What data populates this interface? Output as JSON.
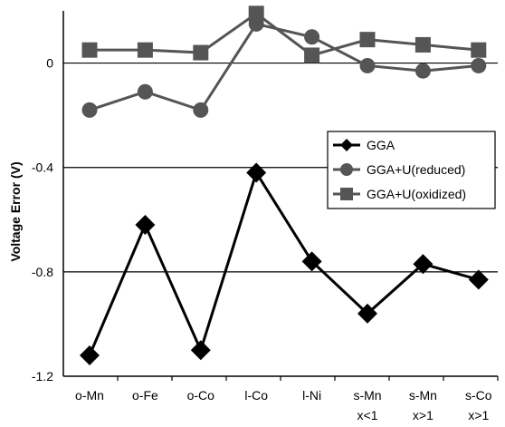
{
  "chart_data": {
    "type": "line",
    "ylabel": "Voltage Error (V)",
    "ylim": [
      -1.2,
      0.2
    ],
    "yticks": [
      {
        "value": 0,
        "label": "0"
      },
      {
        "value": -0.4,
        "label": "-0.4"
      },
      {
        "value": -0.8,
        "label": "-0.8"
      },
      {
        "value": -1.2,
        "label": "-1.2"
      }
    ],
    "categories": [
      {
        "line1": "o-Mn",
        "line2": ""
      },
      {
        "line1": "o-Fe",
        "line2": ""
      },
      {
        "line1": "o-Co",
        "line2": ""
      },
      {
        "line1": "l-Co",
        "line2": ""
      },
      {
        "line1": "l-Ni",
        "line2": ""
      },
      {
        "line1": "s-Mn",
        "line2": "x<1"
      },
      {
        "line1": "s-Mn",
        "line2": "x>1"
      },
      {
        "line1": "s-Co",
        "line2": "x>1"
      }
    ],
    "grid": "horizontal lines at 0, -0.4, -0.8",
    "legend_position": "right",
    "series": [
      {
        "name": "GGA",
        "marker": "diamond",
        "values": [
          -1.12,
          -0.62,
          -1.1,
          -0.42,
          -0.76,
          -0.96,
          -0.77,
          -0.83
        ]
      },
      {
        "name": "GGA+U(reduced)",
        "marker": "circle",
        "values": [
          -0.18,
          -0.11,
          -0.18,
          0.15,
          0.1,
          -0.01,
          -0.03,
          -0.01
        ]
      },
      {
        "name": "GGA+U(oxidized)",
        "marker": "square",
        "values": [
          0.05,
          0.05,
          0.04,
          0.19,
          0.03,
          0.09,
          0.07,
          0.05
        ]
      }
    ],
    "colors": {
      "GGA": "#000000",
      "GGA+U(reduced)": "#555555",
      "GGA+U(oxidized)": "#555555"
    }
  }
}
